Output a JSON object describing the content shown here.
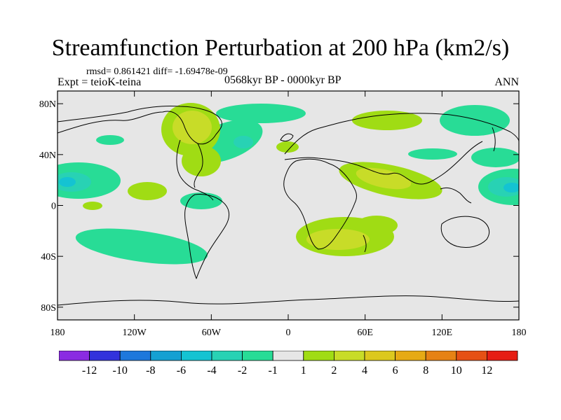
{
  "title": "Streamfunction Perturbation at 200 hPa (km2/s)",
  "stats": "rmsd= 0.861421 diff= -1.69478e-09",
  "left_label": "Expt = teioK-teina",
  "center_label": "0568kyr BP - 0000kyr BP",
  "right_label": "ANN",
  "map": {
    "background": "#e6e6e6",
    "lat_ticks": [
      {
        "label": "80N",
        "value": 80
      },
      {
        "label": "40N",
        "value": 40
      },
      {
        "label": "0",
        "value": 0
      },
      {
        "label": "40S",
        "value": -40
      },
      {
        "label": "80S",
        "value": -80
      }
    ],
    "lon_ticks": [
      {
        "label": "180",
        "value": -180
      },
      {
        "label": "120W",
        "value": -120
      },
      {
        "label": "60W",
        "value": -60
      },
      {
        "label": "0",
        "value": 0
      },
      {
        "label": "60E",
        "value": 60
      },
      {
        "label": "120E",
        "value": 120
      },
      {
        "label": "180",
        "value": 180
      }
    ]
  },
  "colorbar": {
    "colors": [
      "#8a2be2",
      "#3232dc",
      "#1e78dc",
      "#14a0d2",
      "#14c3d2",
      "#28d2b4",
      "#28dc96",
      "#e6e6e6",
      "#a0dc14",
      "#c8dc28",
      "#dcc81e",
      "#e6aa14",
      "#e68214",
      "#e65014",
      "#e61e14"
    ],
    "labels": [
      "-12",
      "-10",
      "-8",
      "-6",
      "-4",
      "-2",
      "-1",
      "1",
      "2",
      "4",
      "6",
      "8",
      "10",
      "12"
    ]
  }
}
